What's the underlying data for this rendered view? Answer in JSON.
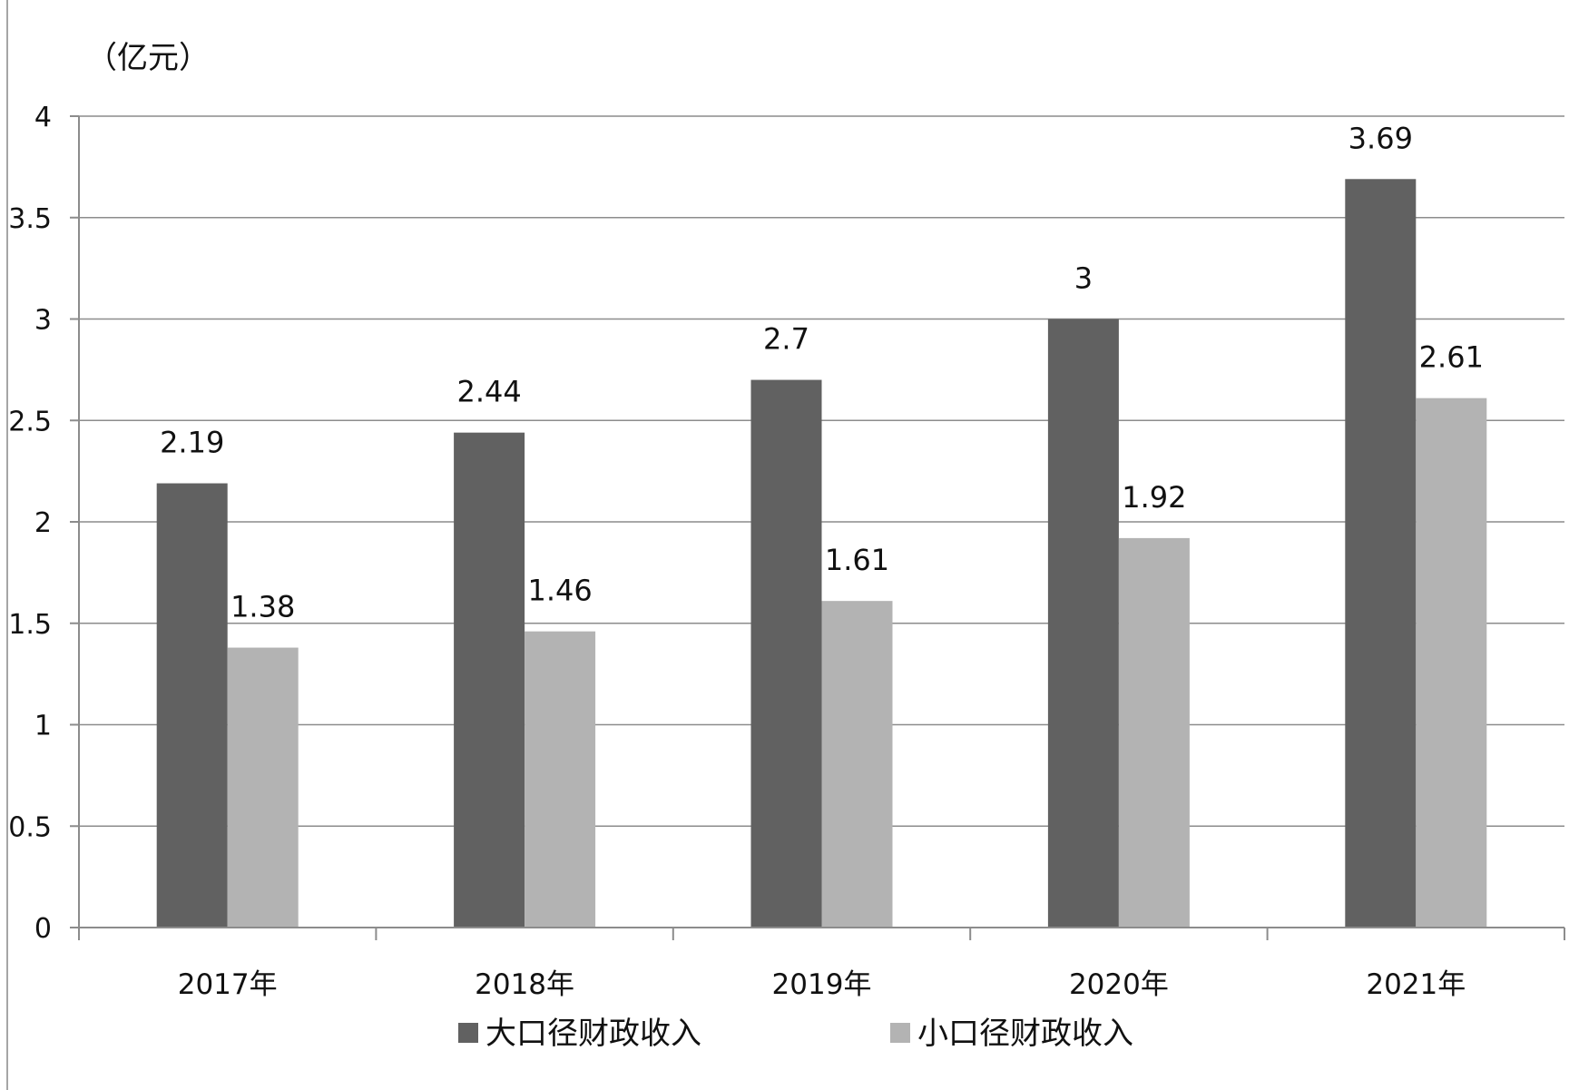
{
  "chart_data": {
    "type": "bar",
    "ylabel": "（亿元）",
    "categories": [
      "2017年",
      "2018年",
      "2019年",
      "2020年",
      "2021年"
    ],
    "series": [
      {
        "name": "大口径财政收入",
        "color": "#616161",
        "values": [
          2.19,
          2.44,
          2.7,
          3,
          3.69
        ]
      },
      {
        "name": "小口径财政收入",
        "color": "#b3b3b3",
        "values": [
          1.38,
          1.46,
          1.61,
          1.92,
          2.61
        ]
      }
    ],
    "ylim": [
      0,
      4
    ],
    "yticks": [
      "0",
      "0.5",
      "1",
      "1.5",
      "2",
      "2.5",
      "3",
      "3.5",
      "4"
    ],
    "data_labels": [
      [
        "2.19",
        "2.44",
        "2.7",
        "3",
        "3.69"
      ],
      [
        "1.38",
        "1.46",
        "1.61",
        "1.92",
        "2.61"
      ]
    ],
    "grid": true,
    "legend": "bottom"
  }
}
